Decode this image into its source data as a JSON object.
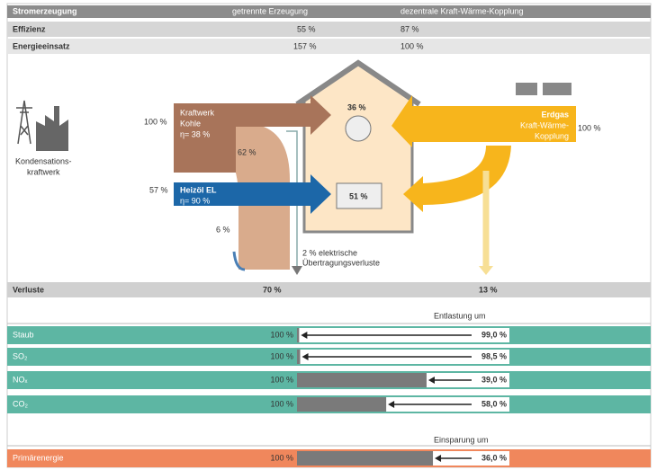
{
  "header": {
    "col1": "Stromerzeugung",
    "col2": "getrennte Erzeugung",
    "col3": "dezentrale Kraft-Wärme-Kopplung"
  },
  "summary_rows": [
    [
      "Effizienz",
      "55 %",
      "87 %"
    ],
    [
      "Energieeinsatz",
      "157 %",
      "100 %"
    ]
  ],
  "diagram": {
    "condensing_label": [
      "Kondensations-",
      "kraftwerk"
    ],
    "power_plant_input": "100 %",
    "power_plant_label": [
      "Kraftwerk",
      "Kohle",
      "η= 38 %"
    ],
    "power_plant_loss": "62 %",
    "heating_input": "57 %",
    "heating_label": [
      "Heizöl EL",
      "η= 90 %"
    ],
    "heating_loss": "6 %",
    "electricity": "36 %",
    "heat": "51 %",
    "chp_label": [
      "Erdgas",
      "Kraft-Wärme-",
      "Kopplung"
    ],
    "chp_input": "100 %",
    "transmission_label": [
      "2 % elektrische",
      "Übertragungsverluste"
    ]
  },
  "losses": {
    "label": "Verluste",
    "separate": "70 %",
    "chp": "13 %"
  },
  "emissions": {
    "caption": "Entlastung um",
    "rows": [
      {
        "name": "Staub",
        "base": {
          "value": 100,
          "label": "100 %"
        },
        "reduction": {
          "value": 99.0,
          "label": "99,0 %"
        }
      },
      {
        "name": "SO₂",
        "base": {
          "value": 100,
          "label": "100 %"
        },
        "reduction": {
          "value": 98.5,
          "label": "98,5 %"
        }
      },
      {
        "name": "NOₓ",
        "base": {
          "value": 100,
          "label": "100 %"
        },
        "reduction": {
          "value": 39.0,
          "label": "39,0 %"
        }
      },
      {
        "name": "CO₂",
        "base": {
          "value": 100,
          "label": "100 %"
        },
        "reduction": {
          "value": 58.0,
          "label": "58,0 %"
        }
      }
    ]
  },
  "primary": {
    "caption": "Einsparung um",
    "rows": [
      {
        "name": "Primärenergie",
        "base": {
          "value": 100,
          "label": "100 %"
        },
        "reduction": {
          "value": 36.0,
          "label": "36,0 %"
        }
      }
    ]
  }
}
